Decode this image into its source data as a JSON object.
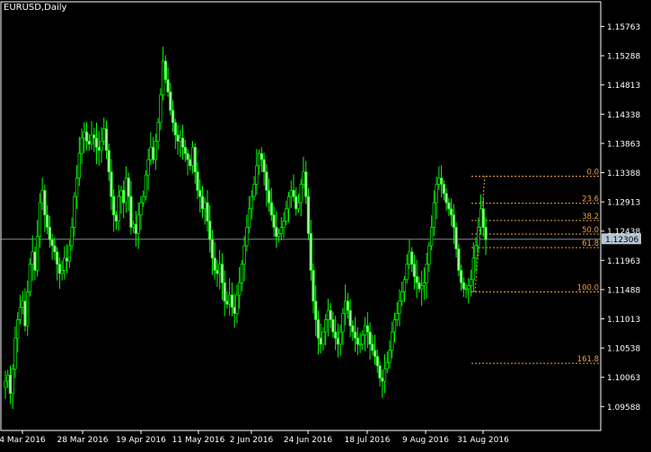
{
  "window": {
    "title": "EURUSD,Daily"
  },
  "colors": {
    "background": "#000000",
    "candles": "#00ff00",
    "candle_body": "#a8f0a0",
    "fib": "#e8a040",
    "price_line": "#7f8c98",
    "axis": "#ffffff",
    "price_badge_bg": "#b7c5d6",
    "price_badge_text": "#000000"
  },
  "chart_data": {
    "type": "candlestick",
    "symbol": "EURUSD",
    "timeframe": "Daily",
    "y_ticks": [
      "1.15763",
      "1.15288",
      "1.14813",
      "1.14338",
      "1.13863",
      "1.13388",
      "1.12913",
      "1.12438",
      "1.11963",
      "1.11488",
      "1.11013",
      "1.10538",
      "1.10063",
      "1.09588"
    ],
    "x_ticks": [
      "4 Mar 2016",
      "28 Mar 2016",
      "19 Apr 2016",
      "11 May 2016",
      "2 Jun 2016",
      "24 Jun 2016",
      "18 Jul 2016",
      "9 Aug 2016",
      "31 Aug 2016"
    ],
    "current_price": "1.12306",
    "fibonacci": {
      "high": 1.1333,
      "low": 1.1145,
      "levels": [
        {
          "label": "0.0",
          "value": 1.1333
        },
        {
          "label": "23.6",
          "value": 1.1289
        },
        {
          "label": "38.2",
          "value": 1.1261
        },
        {
          "label": "50.0",
          "value": 1.1239
        },
        {
          "label": "61.8",
          "value": 1.1217
        },
        {
          "label": "100.0",
          "value": 1.1145
        },
        {
          "label": "161.8",
          "value": 1.1029
        }
      ]
    },
    "closes": [
      1.1,
      1.101,
      1.098,
      1.102,
      1.107,
      1.11,
      1.112,
      1.113,
      1.109,
      1.1145,
      1.119,
      1.121,
      1.118,
      1.1235,
      1.129,
      1.131,
      1.127,
      1.125,
      1.123,
      1.122,
      1.121,
      1.119,
      1.1175,
      1.118,
      1.12,
      1.1195,
      1.122,
      1.125,
      1.13,
      1.133,
      1.137,
      1.1395,
      1.1405,
      1.139,
      1.1385,
      1.14,
      1.1395,
      1.138,
      1.1375,
      1.139,
      1.141,
      1.1375,
      1.134,
      1.13,
      1.127,
      1.126,
      1.13,
      1.131,
      1.129,
      1.133,
      1.13,
      1.125,
      1.1255,
      1.124,
      1.127,
      1.129,
      1.13,
      1.1335,
      1.136,
      1.138,
      1.136,
      1.139,
      1.142,
      1.1465,
      1.152,
      1.149,
      1.147,
      1.144,
      1.142,
      1.14,
      1.139,
      1.1395,
      1.138,
      1.137,
      1.136,
      1.135,
      1.138,
      1.134,
      1.131,
      1.13,
      1.128,
      1.129,
      1.126,
      1.123,
      1.12,
      1.118,
      1.1175,
      1.119,
      1.116,
      1.113,
      1.1125,
      1.114,
      1.112,
      1.111,
      1.114,
      1.116,
      1.119,
      1.122,
      1.125,
      1.128,
      1.13,
      1.132,
      1.135,
      1.137,
      1.136,
      1.134,
      1.131,
      1.129,
      1.127,
      1.125,
      1.1235,
      1.124,
      1.125,
      1.126,
      1.128,
      1.13,
      1.131,
      1.13,
      1.128,
      1.129,
      1.132,
      1.134,
      1.13,
      1.124,
      1.118,
      1.113,
      1.11,
      1.107,
      1.106,
      1.108,
      1.11,
      1.1115,
      1.11,
      1.108,
      1.107,
      1.106,
      1.108,
      1.111,
      1.113,
      1.1115,
      1.109,
      1.108,
      1.107,
      1.106,
      1.106,
      1.1075,
      1.109,
      1.108,
      1.106,
      1.105,
      1.104,
      1.1025,
      1.1005,
      1.1,
      1.102,
      1.103,
      1.105,
      1.108,
      1.11,
      1.111,
      1.113,
      1.1145,
      1.1165,
      1.119,
      1.121,
      1.119,
      1.117,
      1.116,
      1.115,
      1.1155,
      1.116,
      1.119,
      1.122,
      1.125,
      1.129,
      1.132,
      1.133,
      1.132,
      1.1305,
      1.129,
      1.128,
      1.127,
      1.125,
      1.1215,
      1.118,
      1.116,
      1.115,
      1.115,
      1.1155,
      1.1165,
      1.12,
      1.122,
      1.125,
      1.128,
      1.125,
      1.123
    ]
  }
}
